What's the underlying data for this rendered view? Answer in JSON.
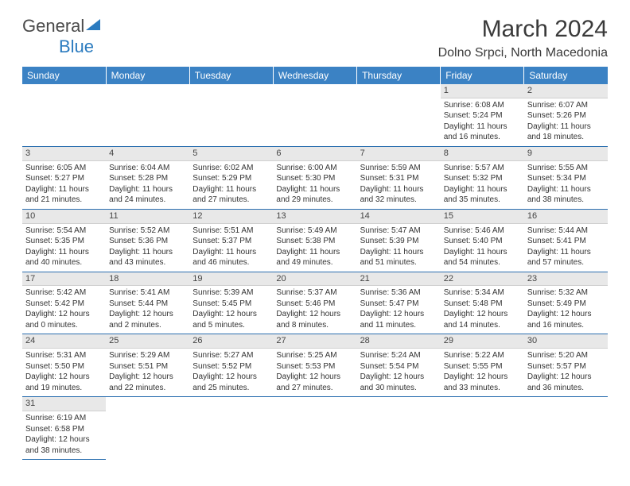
{
  "logo": {
    "word1": "General",
    "word2": "Blue"
  },
  "title": "March 2024",
  "location": "Dolno Srpci, North Macedonia",
  "header_bg": "#3b82c4",
  "header_fg": "#ffffff",
  "row_border": "#2b6fb0",
  "daynum_bg": "#e8e8e8",
  "days_of_week": [
    "Sunday",
    "Monday",
    "Tuesday",
    "Wednesday",
    "Thursday",
    "Friday",
    "Saturday"
  ],
  "weeks": [
    [
      null,
      null,
      null,
      null,
      null,
      {
        "n": "1",
        "sr": "Sunrise: 6:08 AM",
        "ss": "Sunset: 5:24 PM",
        "dl": "Daylight: 11 hours and 16 minutes."
      },
      {
        "n": "2",
        "sr": "Sunrise: 6:07 AM",
        "ss": "Sunset: 5:26 PM",
        "dl": "Daylight: 11 hours and 18 minutes."
      }
    ],
    [
      {
        "n": "3",
        "sr": "Sunrise: 6:05 AM",
        "ss": "Sunset: 5:27 PM",
        "dl": "Daylight: 11 hours and 21 minutes."
      },
      {
        "n": "4",
        "sr": "Sunrise: 6:04 AM",
        "ss": "Sunset: 5:28 PM",
        "dl": "Daylight: 11 hours and 24 minutes."
      },
      {
        "n": "5",
        "sr": "Sunrise: 6:02 AM",
        "ss": "Sunset: 5:29 PM",
        "dl": "Daylight: 11 hours and 27 minutes."
      },
      {
        "n": "6",
        "sr": "Sunrise: 6:00 AM",
        "ss": "Sunset: 5:30 PM",
        "dl": "Daylight: 11 hours and 29 minutes."
      },
      {
        "n": "7",
        "sr": "Sunrise: 5:59 AM",
        "ss": "Sunset: 5:31 PM",
        "dl": "Daylight: 11 hours and 32 minutes."
      },
      {
        "n": "8",
        "sr": "Sunrise: 5:57 AM",
        "ss": "Sunset: 5:32 PM",
        "dl": "Daylight: 11 hours and 35 minutes."
      },
      {
        "n": "9",
        "sr": "Sunrise: 5:55 AM",
        "ss": "Sunset: 5:34 PM",
        "dl": "Daylight: 11 hours and 38 minutes."
      }
    ],
    [
      {
        "n": "10",
        "sr": "Sunrise: 5:54 AM",
        "ss": "Sunset: 5:35 PM",
        "dl": "Daylight: 11 hours and 40 minutes."
      },
      {
        "n": "11",
        "sr": "Sunrise: 5:52 AM",
        "ss": "Sunset: 5:36 PM",
        "dl": "Daylight: 11 hours and 43 minutes."
      },
      {
        "n": "12",
        "sr": "Sunrise: 5:51 AM",
        "ss": "Sunset: 5:37 PM",
        "dl": "Daylight: 11 hours and 46 minutes."
      },
      {
        "n": "13",
        "sr": "Sunrise: 5:49 AM",
        "ss": "Sunset: 5:38 PM",
        "dl": "Daylight: 11 hours and 49 minutes."
      },
      {
        "n": "14",
        "sr": "Sunrise: 5:47 AM",
        "ss": "Sunset: 5:39 PM",
        "dl": "Daylight: 11 hours and 51 minutes."
      },
      {
        "n": "15",
        "sr": "Sunrise: 5:46 AM",
        "ss": "Sunset: 5:40 PM",
        "dl": "Daylight: 11 hours and 54 minutes."
      },
      {
        "n": "16",
        "sr": "Sunrise: 5:44 AM",
        "ss": "Sunset: 5:41 PM",
        "dl": "Daylight: 11 hours and 57 minutes."
      }
    ],
    [
      {
        "n": "17",
        "sr": "Sunrise: 5:42 AM",
        "ss": "Sunset: 5:42 PM",
        "dl": "Daylight: 12 hours and 0 minutes."
      },
      {
        "n": "18",
        "sr": "Sunrise: 5:41 AM",
        "ss": "Sunset: 5:44 PM",
        "dl": "Daylight: 12 hours and 2 minutes."
      },
      {
        "n": "19",
        "sr": "Sunrise: 5:39 AM",
        "ss": "Sunset: 5:45 PM",
        "dl": "Daylight: 12 hours and 5 minutes."
      },
      {
        "n": "20",
        "sr": "Sunrise: 5:37 AM",
        "ss": "Sunset: 5:46 PM",
        "dl": "Daylight: 12 hours and 8 minutes."
      },
      {
        "n": "21",
        "sr": "Sunrise: 5:36 AM",
        "ss": "Sunset: 5:47 PM",
        "dl": "Daylight: 12 hours and 11 minutes."
      },
      {
        "n": "22",
        "sr": "Sunrise: 5:34 AM",
        "ss": "Sunset: 5:48 PM",
        "dl": "Daylight: 12 hours and 14 minutes."
      },
      {
        "n": "23",
        "sr": "Sunrise: 5:32 AM",
        "ss": "Sunset: 5:49 PM",
        "dl": "Daylight: 12 hours and 16 minutes."
      }
    ],
    [
      {
        "n": "24",
        "sr": "Sunrise: 5:31 AM",
        "ss": "Sunset: 5:50 PM",
        "dl": "Daylight: 12 hours and 19 minutes."
      },
      {
        "n": "25",
        "sr": "Sunrise: 5:29 AM",
        "ss": "Sunset: 5:51 PM",
        "dl": "Daylight: 12 hours and 22 minutes."
      },
      {
        "n": "26",
        "sr": "Sunrise: 5:27 AM",
        "ss": "Sunset: 5:52 PM",
        "dl": "Daylight: 12 hours and 25 minutes."
      },
      {
        "n": "27",
        "sr": "Sunrise: 5:25 AM",
        "ss": "Sunset: 5:53 PM",
        "dl": "Daylight: 12 hours and 27 minutes."
      },
      {
        "n": "28",
        "sr": "Sunrise: 5:24 AM",
        "ss": "Sunset: 5:54 PM",
        "dl": "Daylight: 12 hours and 30 minutes."
      },
      {
        "n": "29",
        "sr": "Sunrise: 5:22 AM",
        "ss": "Sunset: 5:55 PM",
        "dl": "Daylight: 12 hours and 33 minutes."
      },
      {
        "n": "30",
        "sr": "Sunrise: 5:20 AM",
        "ss": "Sunset: 5:57 PM",
        "dl": "Daylight: 12 hours and 36 minutes."
      }
    ],
    [
      {
        "n": "31",
        "sr": "Sunrise: 6:19 AM",
        "ss": "Sunset: 6:58 PM",
        "dl": "Daylight: 12 hours and 38 minutes."
      },
      null,
      null,
      null,
      null,
      null,
      null
    ]
  ]
}
